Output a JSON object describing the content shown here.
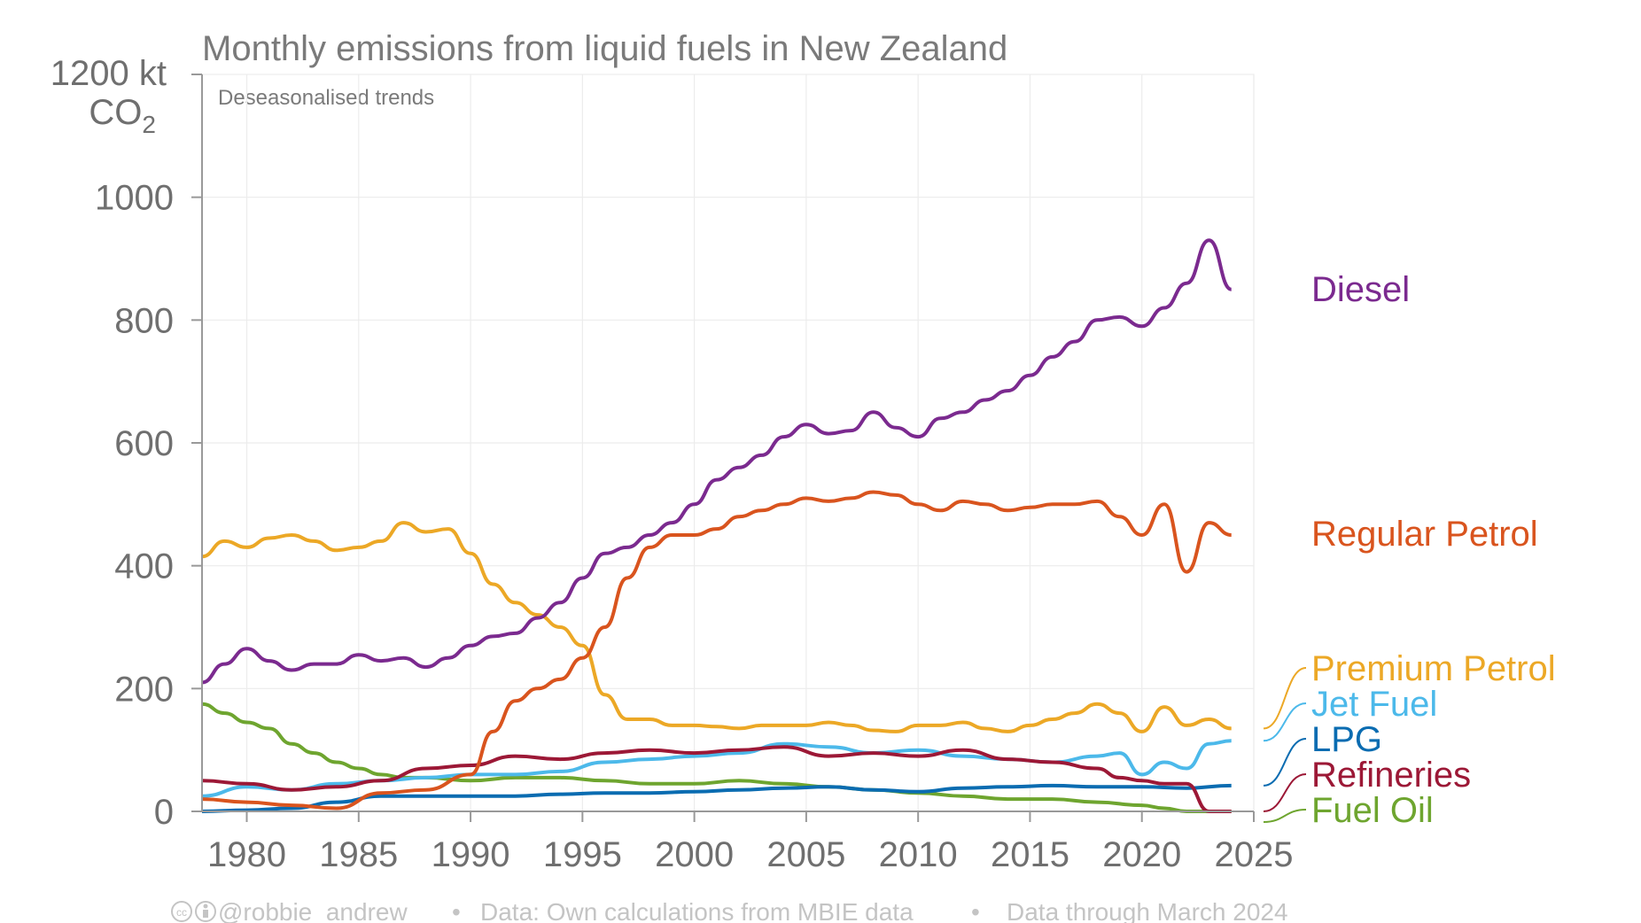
{
  "chart_data": {
    "type": "line",
    "title": "Monthly emissions from liquid fuels in New Zealand",
    "subtitle": "Deseasonalised trends",
    "ylabel_top": "1200 kt",
    "ylabel_unit_base": "CO",
    "ylabel_unit_sub": "2",
    "xlim": [
      1978,
      2025
    ],
    "ylim": [
      0,
      1200
    ],
    "x_ticks": [
      "1980",
      "1985",
      "1990",
      "1995",
      "2000",
      "2005",
      "2010",
      "2015",
      "2020",
      "2025"
    ],
    "y_ticks": [
      "1000",
      "800",
      "600",
      "400",
      "200",
      "0"
    ],
    "grid": true,
    "series": [
      {
        "name": "Diesel",
        "color": "#7b2a8f",
        "x": [
          1978,
          1979,
          1980,
          1981,
          1982,
          1983,
          1984,
          1985,
          1986,
          1987,
          1988,
          1989,
          1990,
          1991,
          1992,
          1993,
          1994,
          1995,
          1996,
          1997,
          1998,
          1999,
          2000,
          2001,
          2002,
          2003,
          2004,
          2005,
          2006,
          2007,
          2008,
          2009,
          2010,
          2011,
          2012,
          2013,
          2014,
          2015,
          2016,
          2017,
          2018,
          2019,
          2020,
          2021,
          2022,
          2023,
          2024
        ],
        "y": [
          210,
          240,
          265,
          245,
          230,
          240,
          240,
          255,
          245,
          250,
          235,
          250,
          270,
          285,
          290,
          315,
          340,
          380,
          420,
          430,
          450,
          470,
          500,
          540,
          560,
          580,
          610,
          630,
          615,
          620,
          650,
          625,
          610,
          640,
          650,
          670,
          685,
          710,
          740,
          765,
          800,
          805,
          790,
          820,
          860,
          930,
          850
        ]
      },
      {
        "name": "Regular Petrol",
        "color": "#d9541e",
        "x": [
          1978,
          1980,
          1982,
          1984,
          1986,
          1988,
          1990,
          1991,
          1992,
          1993,
          1994,
          1995,
          1996,
          1997,
          1998,
          1999,
          2000,
          2001,
          2002,
          2003,
          2004,
          2005,
          2006,
          2007,
          2008,
          2009,
          2010,
          2011,
          2012,
          2013,
          2014,
          2015,
          2016,
          2017,
          2018,
          2019,
          2020,
          2021,
          2022,
          2023,
          2024
        ],
        "y": [
          20,
          15,
          10,
          5,
          30,
          35,
          60,
          130,
          180,
          200,
          215,
          250,
          300,
          380,
          430,
          450,
          450,
          460,
          480,
          490,
          500,
          510,
          505,
          510,
          520,
          515,
          500,
          490,
          505,
          500,
          490,
          495,
          500,
          500,
          505,
          480,
          450,
          500,
          390,
          470,
          450
        ]
      },
      {
        "name": "Premium Petrol",
        "color": "#eca826",
        "x": [
          1978,
          1979,
          1980,
          1981,
          1982,
          1983,
          1984,
          1985,
          1986,
          1987,
          1988,
          1989,
          1990,
          1991,
          1992,
          1993,
          1994,
          1995,
          1996,
          1997,
          1998,
          1999,
          2000,
          2001,
          2002,
          2003,
          2004,
          2005,
          2006,
          2007,
          2008,
          2009,
          2010,
          2011,
          2012,
          2013,
          2014,
          2015,
          2016,
          2017,
          2018,
          2019,
          2020,
          2021,
          2022,
          2023,
          2024
        ],
        "y": [
          415,
          440,
          430,
          445,
          450,
          440,
          425,
          430,
          440,
          470,
          455,
          460,
          420,
          370,
          340,
          320,
          300,
          270,
          190,
          150,
          150,
          140,
          140,
          138,
          135,
          140,
          140,
          140,
          145,
          140,
          132,
          130,
          140,
          140,
          145,
          135,
          130,
          140,
          150,
          160,
          175,
          160,
          130,
          170,
          140,
          150,
          135
        ]
      },
      {
        "name": "Jet Fuel",
        "color": "#4cb9ea",
        "x": [
          1978,
          1980,
          1982,
          1984,
          1986,
          1988,
          1990,
          1992,
          1994,
          1996,
          1998,
          2000,
          2002,
          2004,
          2006,
          2008,
          2010,
          2012,
          2014,
          2016,
          2018,
          2019,
          2020,
          2021,
          2022,
          2023,
          2024
        ],
        "y": [
          25,
          40,
          35,
          45,
          50,
          55,
          60,
          60,
          65,
          80,
          85,
          90,
          95,
          110,
          105,
          95,
          100,
          90,
          85,
          80,
          90,
          95,
          60,
          80,
          70,
          110,
          115
        ]
      },
      {
        "name": "LPG",
        "color": "#0a6cb1",
        "x": [
          1978,
          1980,
          1982,
          1984,
          1986,
          1988,
          1990,
          1992,
          1994,
          1996,
          1998,
          2000,
          2002,
          2004,
          2006,
          2008,
          2010,
          2012,
          2014,
          2016,
          2018,
          2020,
          2022,
          2024
        ],
        "y": [
          0,
          2,
          5,
          15,
          25,
          25,
          25,
          25,
          28,
          30,
          30,
          32,
          35,
          38,
          40,
          35,
          32,
          38,
          40,
          42,
          40,
          40,
          38,
          42
        ]
      },
      {
        "name": "Refineries",
        "color": "#9c1836",
        "x": [
          1978,
          1980,
          1982,
          1984,
          1986,
          1988,
          1990,
          1992,
          1994,
          1996,
          1998,
          2000,
          2002,
          2004,
          2006,
          2008,
          2010,
          2012,
          2014,
          2016,
          2018,
          2019,
          2020,
          2021,
          2022,
          2023,
          2024
        ],
        "y": [
          50,
          45,
          35,
          40,
          50,
          70,
          75,
          90,
          85,
          95,
          100,
          95,
          100,
          105,
          90,
          95,
          90,
          100,
          85,
          80,
          70,
          55,
          50,
          45,
          45,
          0,
          0
        ]
      },
      {
        "name": "Fuel Oil",
        "color": "#6ea52f",
        "x": [
          1978,
          1979,
          1980,
          1981,
          1982,
          1983,
          1984,
          1985,
          1986,
          1987,
          1988,
          1990,
          1992,
          1994,
          1996,
          1998,
          2000,
          2002,
          2004,
          2006,
          2008,
          2010,
          2012,
          2014,
          2016,
          2018,
          2020,
          2021,
          2022,
          2023,
          2024
        ],
        "y": [
          175,
          160,
          145,
          135,
          110,
          95,
          80,
          70,
          60,
          55,
          55,
          50,
          55,
          55,
          50,
          45,
          45,
          50,
          45,
          40,
          35,
          30,
          25,
          20,
          20,
          15,
          10,
          5,
          0,
          0,
          0
        ]
      }
    ]
  },
  "footer": {
    "credit": "@robbie_andrew",
    "separator": "•",
    "source": "Data: Own calculations from MBIE data",
    "through": "Data through March 2024"
  }
}
